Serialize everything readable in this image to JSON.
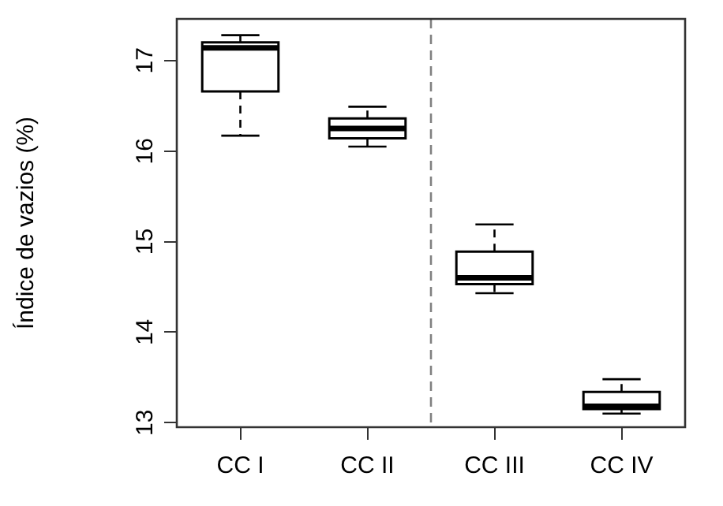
{
  "chart_data": {
    "type": "box",
    "ylabel": "Índice de vazios (%)",
    "categories": [
      "CC I",
      "CC II",
      "CC III",
      "CC IV"
    ],
    "boxes": [
      {
        "low": 16.17,
        "q1": 16.66,
        "median": 17.14,
        "q3": 17.2,
        "high": 17.28
      },
      {
        "low": 16.05,
        "q1": 16.14,
        "median": 16.25,
        "q3": 16.36,
        "high": 16.49
      },
      {
        "low": 14.43,
        "q1": 14.53,
        "median": 14.6,
        "q3": 14.89,
        "high": 15.19
      },
      {
        "low": 13.1,
        "q1": 13.15,
        "median": 13.18,
        "q3": 13.34,
        "high": 13.48
      }
    ],
    "color": "#000000",
    "ylim": [
      12.95,
      17.46
    ],
    "yticks": [
      13,
      14,
      15,
      16,
      17
    ],
    "grid": false,
    "legend": false
  }
}
